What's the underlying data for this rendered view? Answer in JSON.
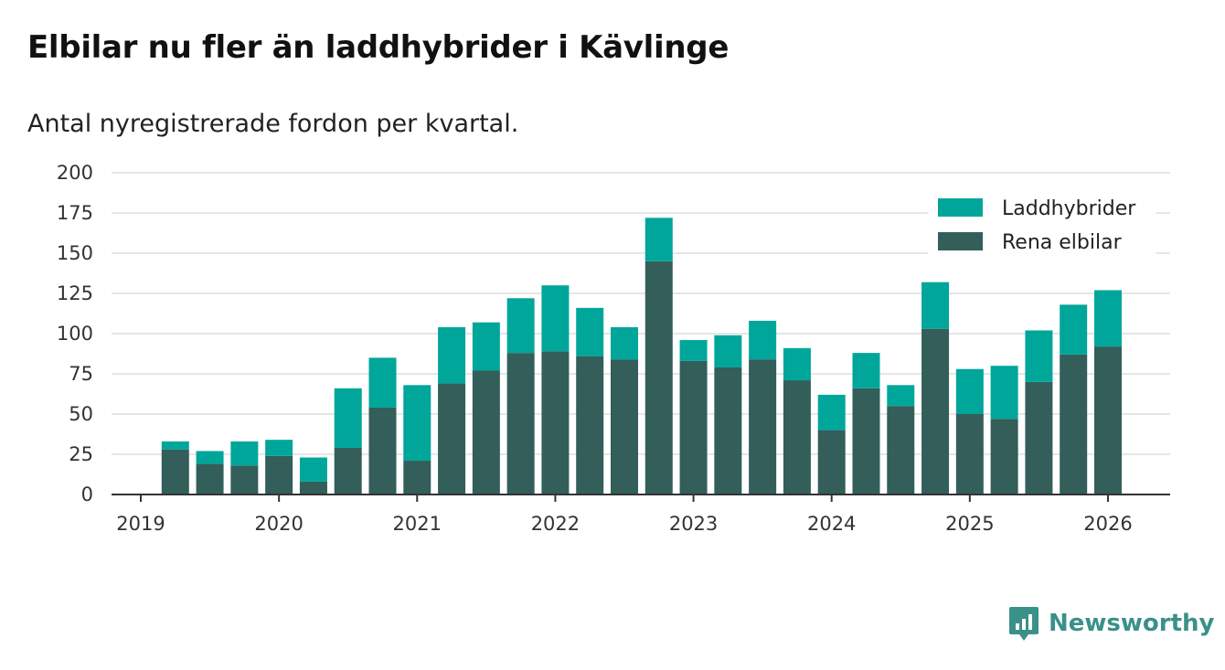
{
  "header": {
    "title": "Elbilar nu fler än laddhybrider i Kävlinge",
    "subtitle": "Antal nyregistrerade fordon per kvartal."
  },
  "brand": {
    "name": "Newsworthy",
    "icon": "newsworthy-logo-icon",
    "color": "#3a9189"
  },
  "colors": {
    "laddhybrider": "#00a69a",
    "rena_elbilar": "#335e5a",
    "grid": "#dddddd",
    "axis": "#333333"
  },
  "chart_data": {
    "type": "bar",
    "stacked": true,
    "title": "Elbilar nu fler än laddhybrider i Kävlinge",
    "subtitle": "Antal nyregistrerade fordon per kvartal.",
    "xlabel": "",
    "ylabel": "",
    "ylim": [
      0,
      200
    ],
    "yticks": [
      0,
      25,
      50,
      75,
      100,
      125,
      150,
      175,
      200
    ],
    "xticks": [
      "2019",
      "2020",
      "2021",
      "2022",
      "2023",
      "2024",
      "2025",
      "2026"
    ],
    "legend_position": "top-right",
    "grid": true,
    "categories": [
      "2019 Q2",
      "2019 Q3",
      "2019 Q4",
      "2020 Q1",
      "2020 Q2",
      "2020 Q3",
      "2020 Q4",
      "2021 Q1",
      "2021 Q2",
      "2021 Q3",
      "2021 Q4",
      "2022 Q1",
      "2022 Q2",
      "2022 Q3",
      "2022 Q4",
      "2023 Q1",
      "2023 Q2",
      "2023 Q3",
      "2023 Q4",
      "2024 Q1",
      "2024 Q2",
      "2024 Q3",
      "2024 Q4",
      "2025 Q1",
      "2025 Q2",
      "2025 Q3",
      "2025 Q4",
      "2026 Q1"
    ],
    "series": [
      {
        "name": "Rena elbilar",
        "values": [
          28,
          19,
          18,
          24,
          8,
          29,
          54,
          21,
          69,
          77,
          88,
          89,
          86,
          84,
          145,
          83,
          79,
          84,
          71,
          40,
          66,
          55,
          103,
          50,
          47,
          70,
          87,
          92
        ]
      },
      {
        "name": "Laddhybrider",
        "values": [
          5,
          8,
          15,
          10,
          15,
          37,
          31,
          47,
          35,
          30,
          34,
          41,
          30,
          20,
          27,
          13,
          20,
          24,
          20,
          22,
          22,
          13,
          29,
          28,
          33,
          32,
          31,
          35
        ]
      }
    ],
    "legend": [
      "Laddhybrider",
      "Rena elbilar"
    ]
  }
}
